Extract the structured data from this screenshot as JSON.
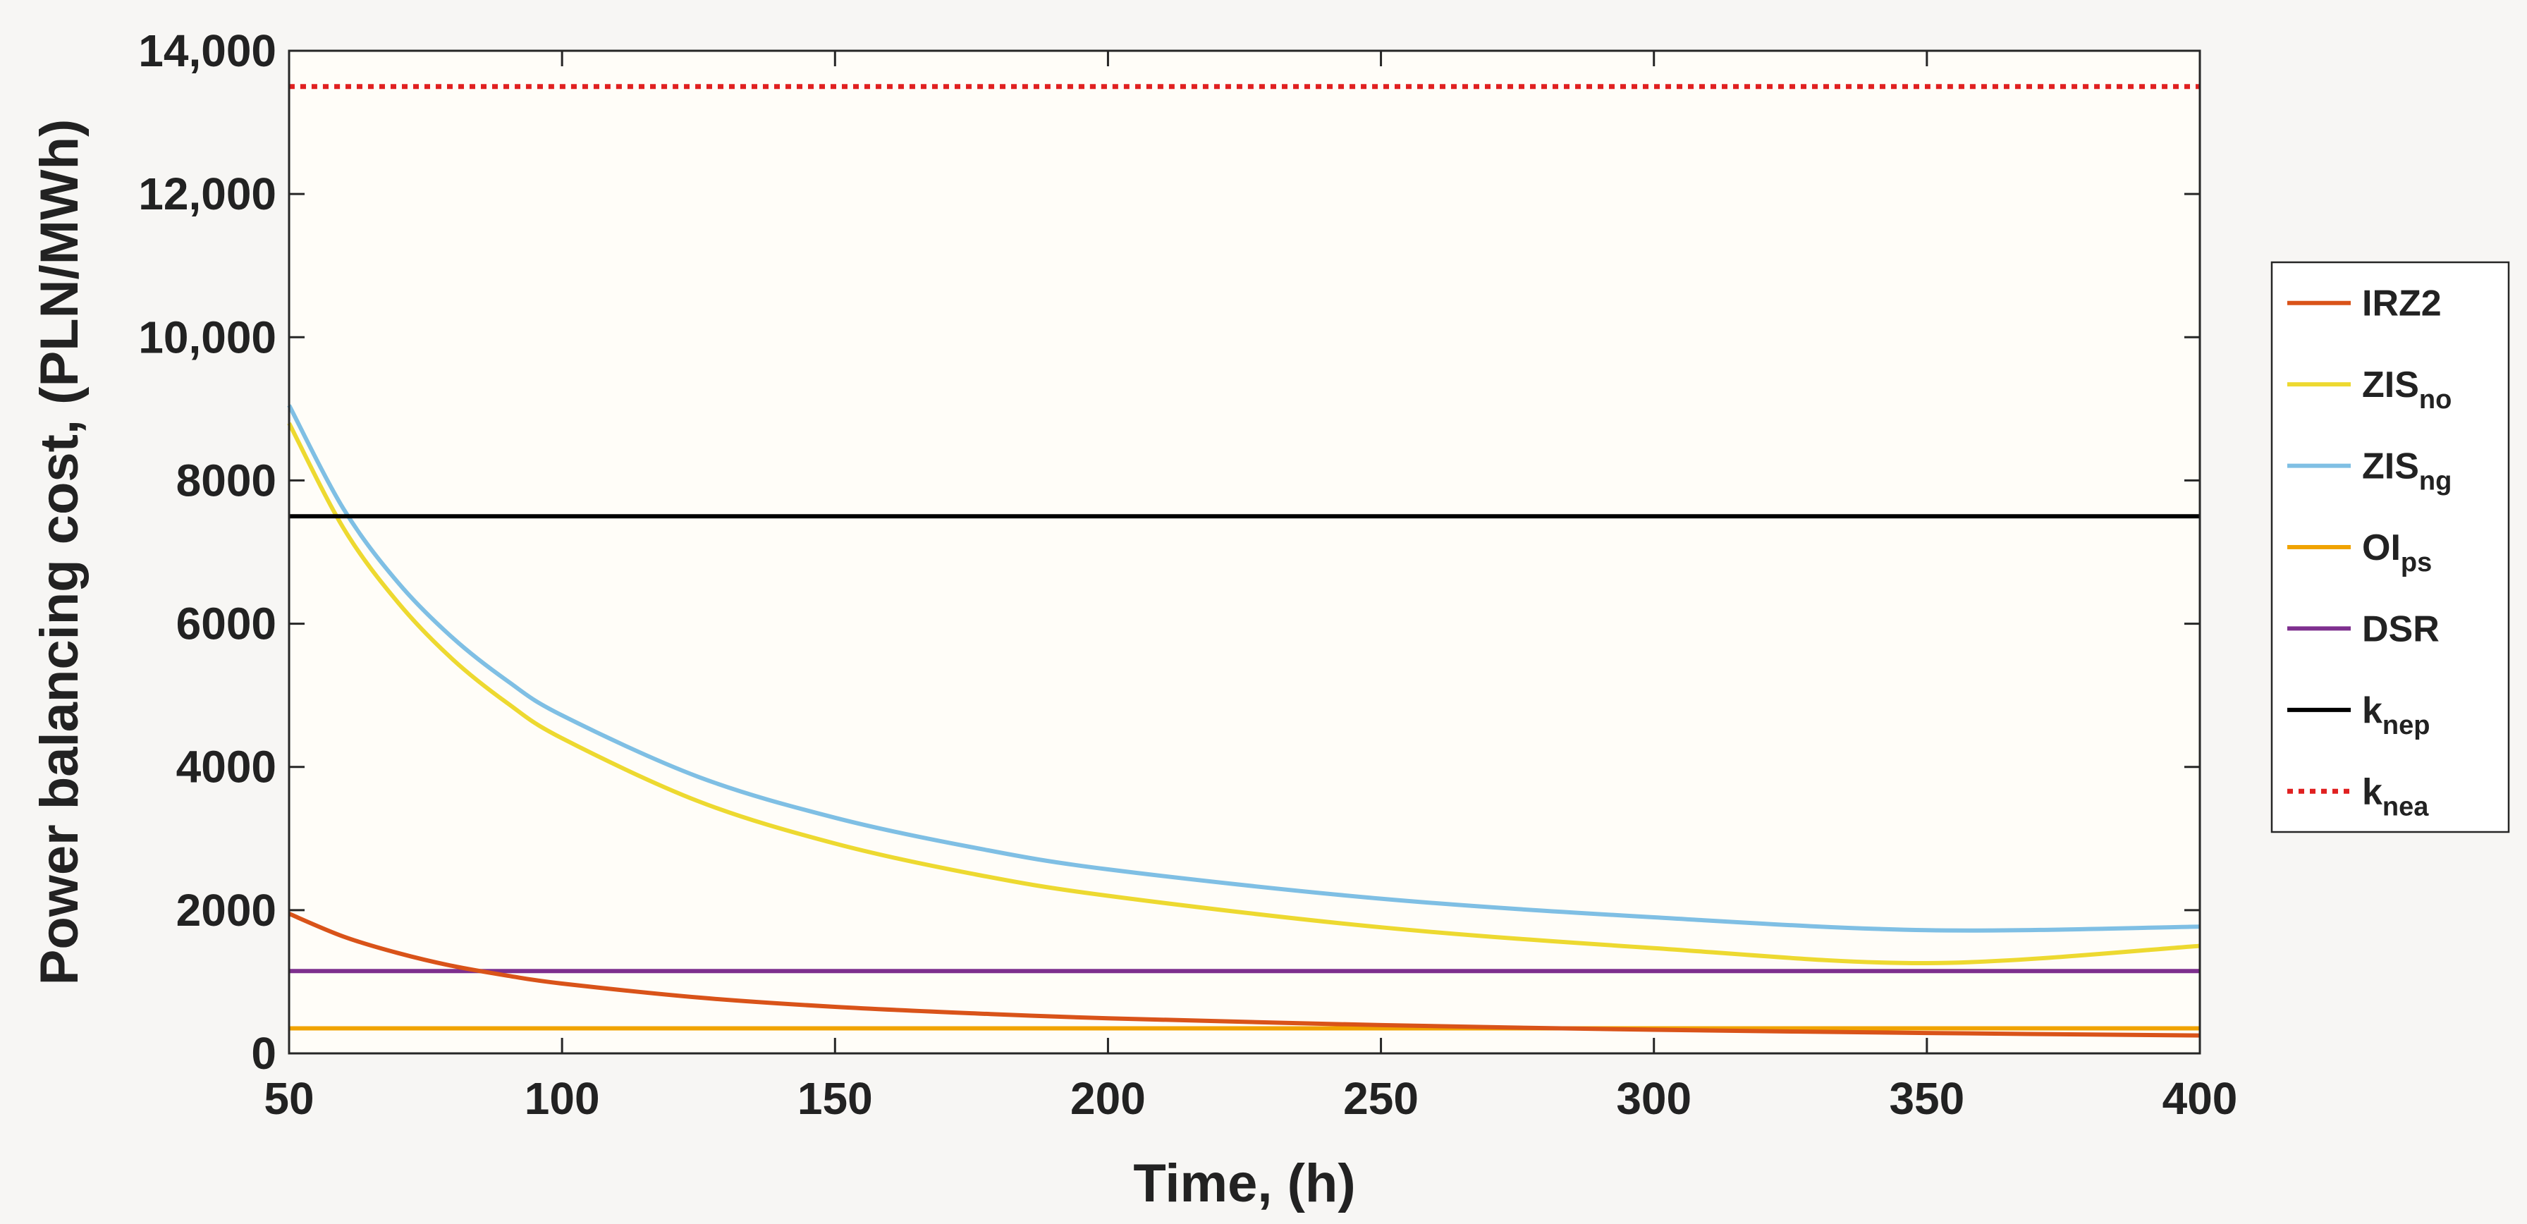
{
  "chart_data": {
    "type": "line",
    "xlabel": "Time, (h)",
    "ylabel": "Power balancing cost, (PLN/MWh)",
    "xlim": [
      50,
      400
    ],
    "ylim": [
      0,
      14000
    ],
    "xticks": [
      50,
      100,
      150,
      200,
      250,
      300,
      350,
      400
    ],
    "yticks": [
      0,
      2000,
      4000,
      6000,
      8000,
      10000,
      12000,
      14000
    ],
    "ytick_labels": [
      "0",
      "2000",
      "4000",
      "6000",
      "8000",
      "10,000",
      "12,000",
      "14,000"
    ],
    "grid": false,
    "legend_position": "right",
    "x": [
      50,
      60,
      70,
      80,
      90,
      100,
      125,
      150,
      175,
      200,
      250,
      300,
      350,
      400
    ],
    "series": [
      {
        "name": "IRZ2",
        "name_main": "IRZ2",
        "name_sub": "",
        "color": "#d95319",
        "style": "solid",
        "values": [
          1950,
          1630,
          1400,
          1220,
          1085,
          975,
          780,
          650,
          560,
          490,
          395,
          330,
          285,
          250
        ]
      },
      {
        "name": "ZIS no",
        "name_main": "ZIS",
        "name_sub": "no",
        "color": "#edd930",
        "style": "solid",
        "values": [
          8800,
          7330,
          6290,
          5500,
          4890,
          4400,
          3520,
          2930,
          2510,
          2200,
          1760,
          1470,
          1260,
          1500
        ]
      },
      {
        "name": "ZIS ng",
        "name_main": "ZIS",
        "name_sub": "ng",
        "color": "#7fbfe4",
        "style": "solid",
        "values": [
          9050,
          7600,
          6570,
          5800,
          5200,
          4720,
          3860,
          3290,
          2880,
          2570,
          2160,
          1900,
          1720,
          1770
        ]
      },
      {
        "name": "OI ps",
        "name_main": "OI",
        "name_sub": "ps",
        "color": "#f0a300",
        "style": "solid",
        "values": [
          350,
          350,
          350,
          350,
          350,
          350,
          350,
          350,
          350,
          350,
          350,
          350,
          350,
          350
        ]
      },
      {
        "name": "DSR",
        "name_main": "DSR",
        "name_sub": "",
        "color": "#7e2f8e",
        "style": "solid",
        "values": [
          1150,
          1150,
          1150,
          1150,
          1150,
          1150,
          1150,
          1150,
          1150,
          1150,
          1150,
          1150,
          1150,
          1150
        ]
      },
      {
        "name": "k nep",
        "name_main": "k",
        "name_sub": "nep",
        "color": "#000000",
        "style": "solid",
        "values": [
          7500,
          7500,
          7500,
          7500,
          7500,
          7500,
          7500,
          7500,
          7500,
          7500,
          7500,
          7500,
          7500,
          7500
        ]
      },
      {
        "name": "k nea",
        "name_main": "k",
        "name_sub": "nea",
        "color": "#e02020",
        "style": "dotted",
        "values": [
          13500,
          13500,
          13500,
          13500,
          13500,
          13500,
          13500,
          13500,
          13500,
          13500,
          13500,
          13500,
          13500,
          13500
        ]
      }
    ]
  }
}
